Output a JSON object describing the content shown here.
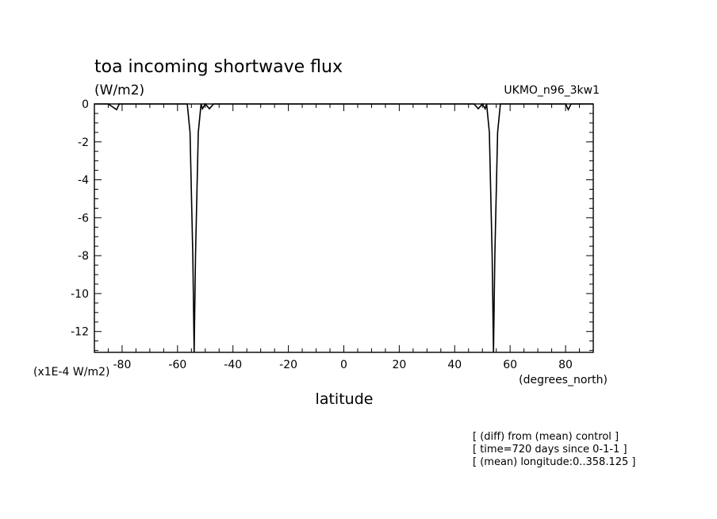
{
  "chart_data": {
    "type": "line",
    "title": "toa incoming shortwave flux",
    "units": "(W/m2)",
    "model": "UKMO_n96_3kw1",
    "xlabel": "latitude",
    "xunits": "(degrees_north)",
    "yscale_label": "(x1E-4 W/m2)",
    "xlim": [
      -90,
      90
    ],
    "ylim": [
      -13.1,
      0
    ],
    "xticks": [
      -80,
      -60,
      -40,
      -20,
      0,
      20,
      40,
      60,
      80
    ],
    "xtick_labels": [
      "-80",
      "-60",
      "-40",
      "-20",
      "0",
      "20",
      "40",
      "60",
      "80"
    ],
    "yticks": [
      0,
      -2,
      -4,
      -6,
      -8,
      -10,
      -12
    ],
    "ytick_labels": [
      "0",
      "-2",
      "-4",
      "-6",
      "-8",
      "-10",
      "-12"
    ],
    "grid": false,
    "legend": false,
    "series": [
      {
        "values_note": "",
        "x": [
          -90,
          -85,
          -82,
          -81,
          -80,
          -78,
          -60,
          -56.5,
          -55.5,
          -54.5,
          -54,
          -53.5,
          -52.5,
          -51.5,
          -51,
          -50,
          -48.5,
          -47,
          -40,
          0,
          40,
          47,
          48.5,
          50,
          51,
          51.5,
          52.5,
          53.5,
          54,
          54.5,
          55.5,
          56.5,
          60,
          78,
          80,
          81,
          82,
          85,
          90
        ],
        "y": [
          0,
          0,
          -0.3,
          0,
          0,
          0,
          0,
          0,
          -1.5,
          -8,
          -13.1,
          -8,
          -1.5,
          0,
          -0.25,
          0,
          -0.25,
          0,
          0,
          0,
          0,
          0,
          -0.25,
          0,
          -0.25,
          0,
          -1.5,
          -8,
          -13.1,
          -8,
          -1.5,
          0,
          0,
          0,
          0,
          -0.3,
          0,
          0,
          0
        ]
      }
    ],
    "notes": [
      "[ (diff) from (mean) control ]",
      "[ time=720 days since 0-1-1 ]",
      "[ (mean) longitude:0..358.125 ]"
    ]
  }
}
